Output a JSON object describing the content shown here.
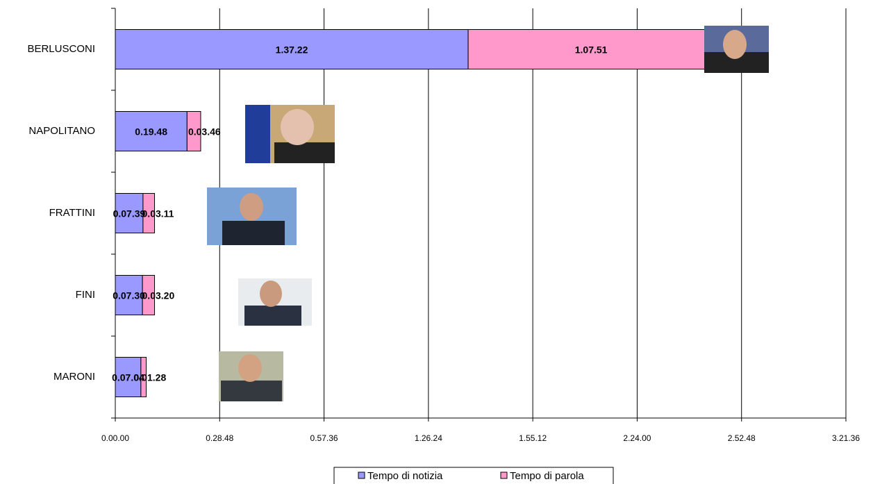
{
  "chart_data": {
    "type": "stacked-barh",
    "categories": [
      "BERLUSCONI",
      "NAPOLITANO",
      "FRATTINI",
      "FINI",
      "MARONI"
    ],
    "series": [
      {
        "name": "Tempo di notizia",
        "color": "#9999ff",
        "values": [
          5842,
          1188,
          459,
          450,
          424
        ],
        "value_labels": [
          "1.37.22",
          "0.19.48",
          "0.07.39",
          "0.07.30",
          "0.07.04"
        ]
      },
      {
        "name": "Tempo di parola",
        "color": "#ff99cc",
        "values": [
          4071,
          226,
          191,
          200,
          88
        ],
        "value_labels": [
          "1.07.51",
          "0.03.46",
          "0.03.11",
          "0.03.20",
          "0.01.28"
        ]
      }
    ],
    "xlim": [
      0,
      12096
    ],
    "xticks": [
      {
        "value": 0,
        "label": "0.00.00"
      },
      {
        "value": 1728,
        "label": "0.28.48"
      },
      {
        "value": 3456,
        "label": "0.57.36"
      },
      {
        "value": 5184,
        "label": "1.26.24"
      },
      {
        "value": 6912,
        "label": "1.55.12"
      },
      {
        "value": 8640,
        "label": "2.24.00"
      },
      {
        "value": 10368,
        "label": "2.52.48"
      },
      {
        "value": 12096,
        "label": "3.21.36"
      }
    ],
    "grid": true,
    "legend": "bottom"
  }
}
